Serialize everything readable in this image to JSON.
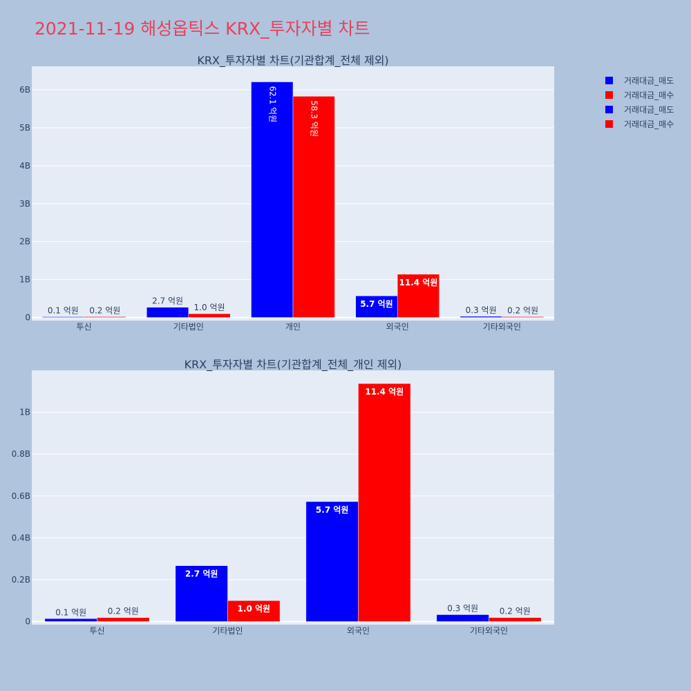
{
  "title": "2021-11-19 해성옵틱스 KRX_투자자별 차트",
  "legend": [
    {
      "name": "거래대금_매도",
      "color": "#0000ff"
    },
    {
      "name": "거래대금_매수",
      "color": "#ff0000"
    },
    {
      "name": "거래대금_매도",
      "color": "#0000ff"
    },
    {
      "name": "거래대금_매수",
      "color": "#ff0000"
    }
  ],
  "chart_data": [
    {
      "type": "bar",
      "title": "KRX_투자자별 차트(기관합계_전체 제외)",
      "categories": [
        "투신",
        "기타법인",
        "개인",
        "외국인",
        "기타외국인"
      ],
      "series": [
        {
          "name": "거래대금_매도",
          "color": "#0000ff",
          "values": [
            0.01,
            0.27,
            6.21,
            0.57,
            0.03
          ],
          "labels": [
            "0.1 억원",
            "2.7 억원",
            "62.1 억원",
            "5.7 억원",
            "0.3 억원"
          ]
        },
        {
          "name": "거래대금_매수",
          "color": "#ff0000",
          "values": [
            0.02,
            0.1,
            5.83,
            1.14,
            0.02
          ],
          "labels": [
            "0.2 억원",
            "1.0 억원",
            "58.3 억원",
            "11.4 억원",
            "0.2 억원"
          ]
        }
      ],
      "ylim": [
        0,
        6.62
      ],
      "yticks": [
        0,
        1,
        2,
        3,
        4,
        5,
        6
      ],
      "ytick_labels": [
        "0",
        "1B",
        "2B",
        "3B",
        "4B",
        "5B",
        "6B"
      ],
      "grid": true
    },
    {
      "type": "bar",
      "title": "KRX_투자자별 차트(기관합계_전체_개인 제외)",
      "categories": [
        "투신",
        "기타법인",
        "외국인",
        "기타외국인"
      ],
      "series": [
        {
          "name": "거래대금_매도",
          "color": "#0000ff",
          "values": [
            0.014,
            0.267,
            0.573,
            0.033
          ],
          "labels": [
            "0.1 억원",
            "2.7 억원",
            "5.7 억원",
            "0.3 억원"
          ]
        },
        {
          "name": "거래대금_매수",
          "color": "#ff0000",
          "values": [
            0.019,
            0.1,
            1.137,
            0.019
          ],
          "labels": [
            "0.2 억원",
            "1.0 억원",
            "11.4 억원",
            "0.2 억원"
          ]
        }
      ],
      "ylim": [
        0,
        1.2
      ],
      "yticks": [
        0,
        0.2,
        0.4,
        0.6,
        0.8,
        1.0
      ],
      "ytick_labels": [
        "0",
        "0.2B",
        "0.4B",
        "0.6B",
        "0.8B",
        "1B"
      ],
      "grid": true
    }
  ]
}
